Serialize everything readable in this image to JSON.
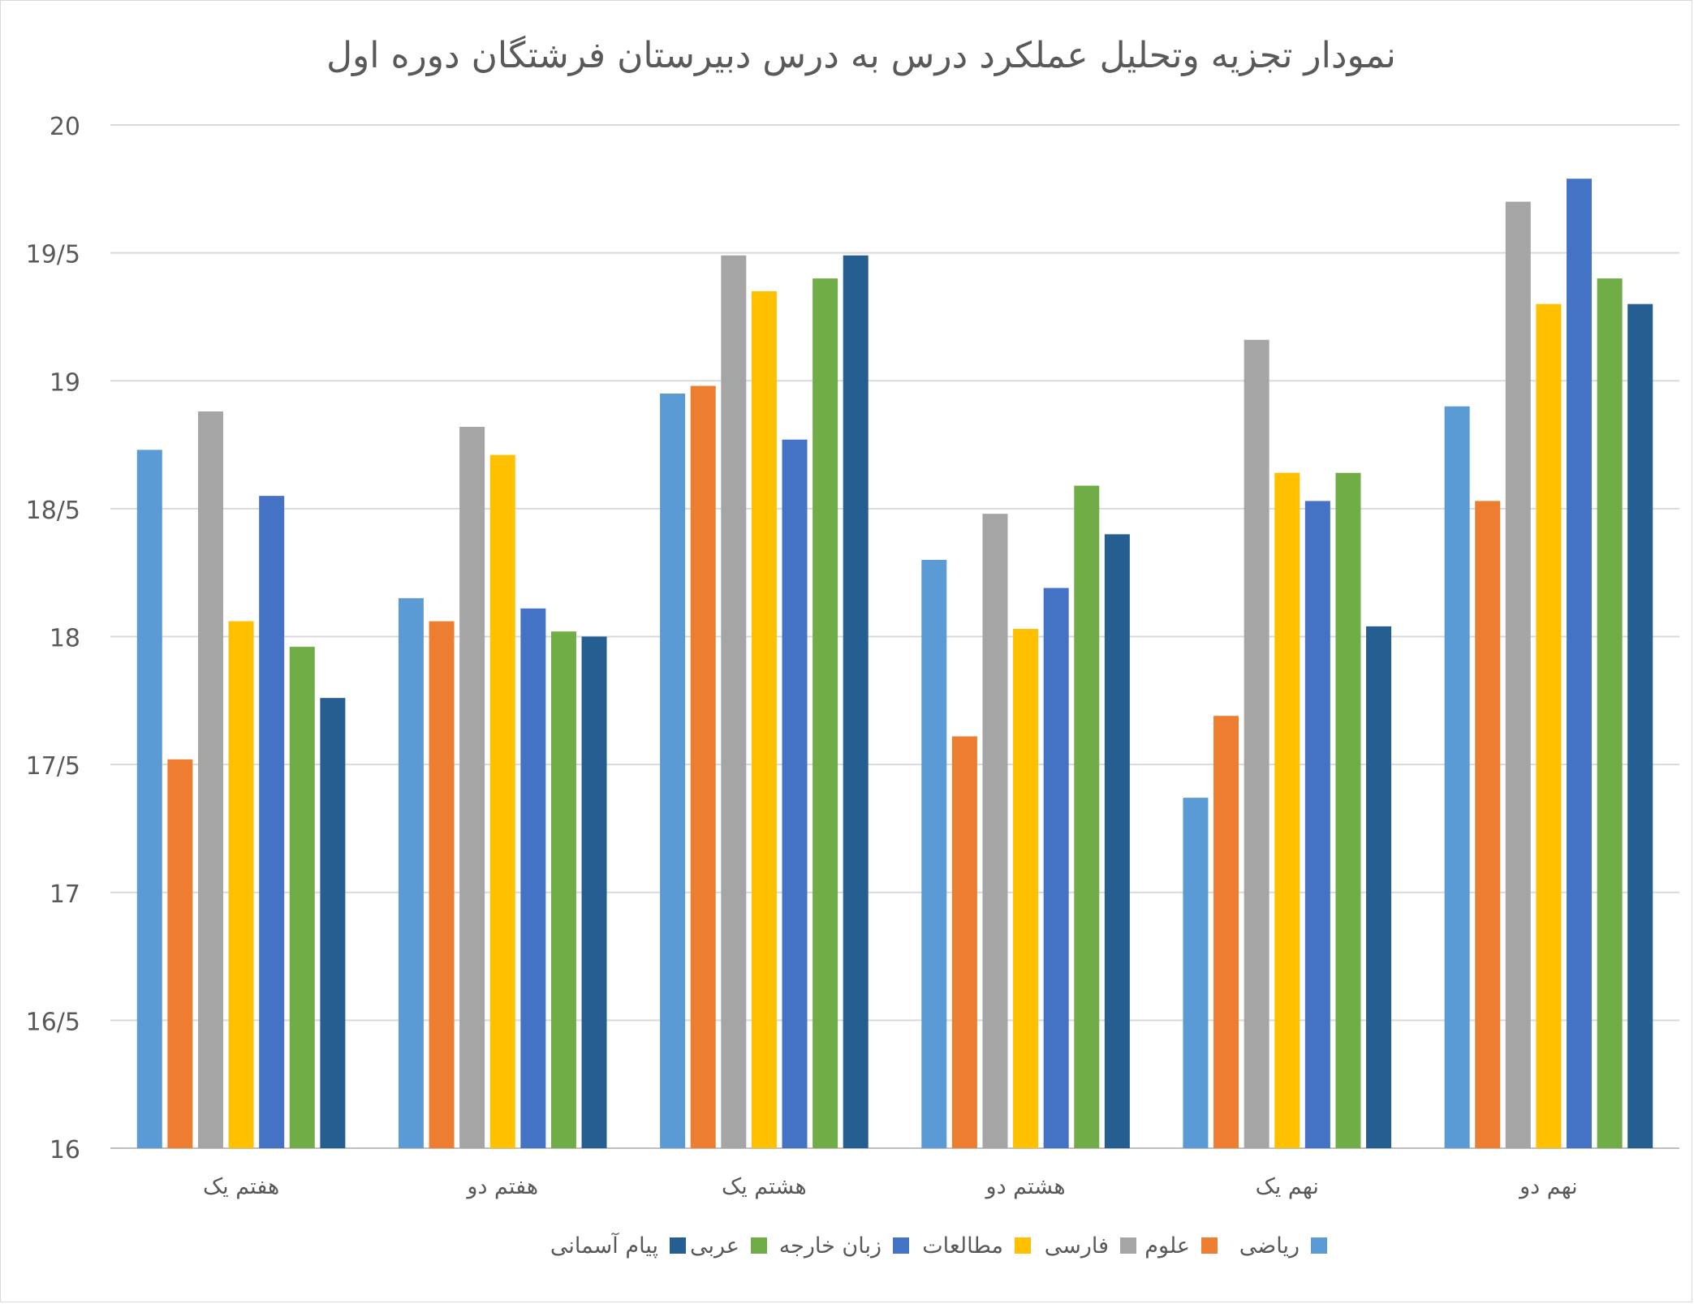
{
  "chart_data": {
    "type": "bar",
    "title": "نمودار تجزیه وتحلیل عملکرد درس به درس دبیرستان فرشتگان دوره اول",
    "xlabel": "",
    "ylabel": "",
    "ylim": [
      16,
      20
    ],
    "y_ticks": [
      {
        "value": 16,
        "label": "16"
      },
      {
        "value": 16.5,
        "label": "16/5"
      },
      {
        "value": 17,
        "label": "17"
      },
      {
        "value": 17.5,
        "label": "17/5"
      },
      {
        "value": 18,
        "label": "18"
      },
      {
        "value": 18.5,
        "label": "18/5"
      },
      {
        "value": 19,
        "label": "19"
      },
      {
        "value": 19.5,
        "label": "19/5"
      },
      {
        "value": 20,
        "label": "20"
      }
    ],
    "grid": true,
    "legend_position": "bottom",
    "categories": [
      "هفتم یک",
      "هفتم دو",
      "هشتم یک",
      "هشتم دو",
      "نهم یک",
      "نهم دو"
    ],
    "series": [
      {
        "name": "ریاضی",
        "color": "#5b9bd5",
        "values": [
          18.73,
          18.15,
          18.95,
          18.3,
          17.37,
          18.9
        ]
      },
      {
        "name": "علوم",
        "color": "#ed7d31",
        "values": [
          17.52,
          18.06,
          18.98,
          17.61,
          17.69,
          18.53
        ]
      },
      {
        "name": "فارسی",
        "color": "#a5a5a5",
        "values": [
          18.88,
          18.82,
          19.49,
          18.48,
          19.16,
          19.7
        ]
      },
      {
        "name": "مطالعات",
        "color": "#ffc000",
        "values": [
          18.06,
          18.71,
          19.35,
          18.03,
          18.64,
          19.3
        ]
      },
      {
        "name": "زبان خارجه",
        "color": "#4472c4",
        "values": [
          18.55,
          18.11,
          18.77,
          18.19,
          18.53,
          19.79
        ]
      },
      {
        "name": "عربی",
        "color": "#70ad47",
        "values": [
          17.96,
          18.02,
          19.4,
          18.59,
          18.64,
          19.4
        ]
      },
      {
        "name": "پیام آسمانی",
        "color": "#255e91",
        "values": [
          17.76,
          18.0,
          19.49,
          18.4,
          18.04,
          19.3
        ]
      }
    ]
  }
}
